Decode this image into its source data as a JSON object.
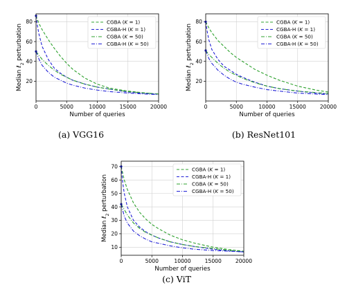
{
  "chart_data": [
    {
      "type": "line",
      "caption": "(a) VGG16",
      "xlabel": "Number of queries",
      "ylabel": "Median ℓ2 perturbation",
      "xlim": [
        0,
        20000
      ],
      "ylim": [
        0,
        88
      ],
      "xticks": [
        "0",
        "5000",
        "10000",
        "15000",
        "20000"
      ],
      "yticks": [
        "20",
        "40",
        "60",
        "80"
      ],
      "grid": true,
      "legend_position": "top-right",
      "series": [
        {
          "name": "CGBA (K = 1)",
          "color": "#2ca02c",
          "dash": "4,2.5",
          "x": [
            0,
            500,
            1000,
            2000,
            3000,
            4000,
            5000,
            6000,
            8000,
            10000,
            12000,
            15000,
            18000,
            20000
          ],
          "y": [
            86,
            78,
            72,
            62,
            53,
            45,
            38,
            32,
            23,
            17,
            13,
            10,
            8,
            7
          ]
        },
        {
          "name": "CGBA-H (K = 1)",
          "color": "#1f1fd6",
          "dash": "4,2.5",
          "x": [
            0,
            250,
            500,
            1000,
            2000,
            3000,
            4000,
            5000,
            6000,
            8000,
            10000,
            12000,
            15000,
            18000,
            20000
          ],
          "y": [
            86,
            75,
            67,
            55,
            42,
            33,
            28,
            24,
            21,
            17,
            14,
            12,
            9,
            7.5,
            7
          ]
        },
        {
          "name": "CGBA (K = 50)",
          "color": "#2ca02c",
          "dash": "5,2,1,2",
          "x": [
            0,
            500,
            1000,
            2000,
            3000,
            4000,
            5000,
            6000,
            8000,
            10000,
            12000,
            15000,
            18000,
            20000
          ],
          "y": [
            50,
            46,
            42,
            36,
            31,
            27,
            24,
            21,
            17,
            14,
            12,
            9.5,
            8,
            7
          ]
        },
        {
          "name": "CGBA-H (K = 50)",
          "color": "#1f1fd6",
          "dash": "5,2,1,2",
          "x": [
            0,
            500,
            1000,
            2000,
            3000,
            4000,
            5000,
            6000,
            8000,
            10000,
            12000,
            15000,
            18000,
            20000
          ],
          "y": [
            50,
            42,
            36,
            29,
            24,
            21,
            18,
            16,
            13,
            11,
            9.5,
            8,
            7,
            6.5
          ]
        }
      ]
    },
    {
      "type": "line",
      "caption": "(b) ResNet101",
      "xlabel": "Number of queries",
      "ylabel": "Median ℓ2 perturbation",
      "xlim": [
        0,
        20000
      ],
      "ylim": [
        0,
        88
      ],
      "xticks": [
        "0",
        "5000",
        "10000",
        "15000",
        "20000"
      ],
      "yticks": [
        "20",
        "40",
        "60",
        "80"
      ],
      "grid": true,
      "legend_position": "top-right",
      "series": [
        {
          "name": "CGBA (K = 1)",
          "color": "#2ca02c",
          "dash": "4,2.5",
          "x": [
            0,
            500,
            1000,
            2000,
            3000,
            4000,
            5000,
            6000,
            8000,
            10000,
            12000,
            15000,
            18000,
            20000
          ],
          "y": [
            80,
            74,
            69,
            61,
            55,
            49,
            44,
            40,
            32,
            26,
            21,
            15,
            11,
            9
          ]
        },
        {
          "name": "CGBA-H (K = 1)",
          "color": "#1f1fd6",
          "dash": "4,2.5",
          "x": [
            0,
            250,
            500,
            1000,
            2000,
            3000,
            4000,
            5000,
            6000,
            8000,
            10000,
            12000,
            15000,
            18000,
            20000
          ],
          "y": [
            80,
            70,
            62,
            52,
            42,
            35,
            31,
            27,
            24,
            19,
            15,
            12.5,
            10,
            8,
            7
          ]
        },
        {
          "name": "CGBA (K = 50)",
          "color": "#2ca02c",
          "dash": "5,2,1,2",
          "x": [
            0,
            500,
            1000,
            2000,
            3000,
            4000,
            5000,
            6000,
            8000,
            10000,
            12000,
            15000,
            18000,
            20000
          ],
          "y": [
            51,
            47,
            44,
            38,
            33,
            29,
            26,
            23,
            18.5,
            15,
            12.5,
            10,
            8.5,
            7.5
          ]
        },
        {
          "name": "CGBA-H (K = 50)",
          "color": "#1f1fd6",
          "dash": "5,2,1,2",
          "x": [
            0,
            500,
            1000,
            2000,
            3000,
            4000,
            5000,
            6000,
            8000,
            10000,
            12000,
            15000,
            18000,
            20000
          ],
          "y": [
            51,
            43,
            38,
            31,
            26,
            22,
            19,
            17,
            14,
            11.5,
            10,
            8,
            7,
            6.5
          ]
        }
      ]
    },
    {
      "type": "line",
      "caption": "(c) ViT",
      "xlabel": "Number of queries",
      "ylabel": "Median ℓ2 perturbation",
      "xlim": [
        0,
        20000
      ],
      "ylim": [
        4,
        74
      ],
      "xticks": [
        "0",
        "5000",
        "10000",
        "15000",
        "20000"
      ],
      "yticks": [
        "10",
        "20",
        "30",
        "40",
        "50",
        "60",
        "70"
      ],
      "grid": true,
      "legend_position": "top-right",
      "series": [
        {
          "name": "CGBA (K = 1)",
          "color": "#2ca02c",
          "dash": "4,2.5",
          "x": [
            0,
            500,
            1000,
            2000,
            3000,
            4000,
            5000,
            6000,
            8000,
            10000,
            12000,
            15000,
            18000,
            20000
          ],
          "y": [
            70,
            60,
            53,
            43,
            36,
            31,
            27,
            24,
            19,
            15.5,
            13,
            10,
            8,
            7
          ]
        },
        {
          "name": "CGBA-H (K = 1)",
          "color": "#1f1fd6",
          "dash": "4,2.5",
          "x": [
            0,
            250,
            500,
            1000,
            2000,
            3000,
            4000,
            5000,
            6000,
            8000,
            10000,
            12000,
            15000,
            18000,
            20000
          ],
          "y": [
            70,
            58,
            50,
            40,
            30,
            25,
            21.5,
            19,
            17,
            14,
            12,
            10.5,
            8.5,
            7,
            6.5
          ]
        },
        {
          "name": "CGBA (K = 50)",
          "color": "#2ca02c",
          "dash": "5,2,1,2",
          "x": [
            0,
            500,
            1000,
            2000,
            3000,
            4000,
            5000,
            6000,
            8000,
            10000,
            12000,
            15000,
            18000,
            20000
          ],
          "y": [
            42,
            38,
            34,
            28,
            24,
            21,
            19,
            17,
            14,
            12,
            10.5,
            9,
            7.5,
            7
          ]
        },
        {
          "name": "CGBA-H (K = 50)",
          "color": "#1f1fd6",
          "dash": "5,2,1,2",
          "x": [
            0,
            500,
            1000,
            2000,
            3000,
            4000,
            5000,
            6000,
            8000,
            10000,
            12000,
            15000,
            18000,
            20000
          ],
          "y": [
            42,
            33,
            28,
            22,
            18.5,
            16,
            14,
            13,
            11,
            9.5,
            8.5,
            7.5,
            7,
            6.5
          ]
        }
      ]
    }
  ]
}
